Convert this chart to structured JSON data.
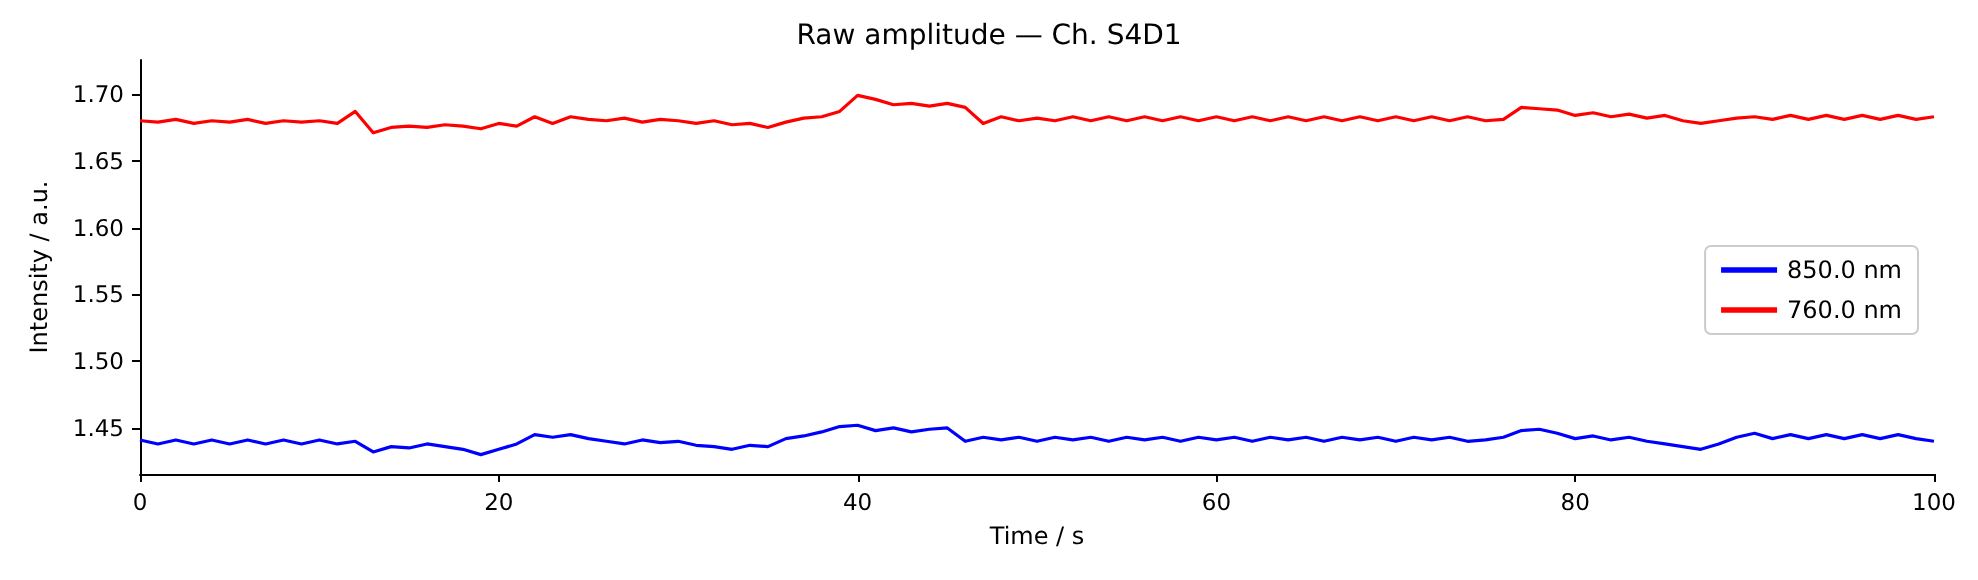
{
  "chart_data": {
    "type": "line",
    "title": "Raw amplitude — Ch. S4D1",
    "xlabel": "Time / s",
    "ylabel": "Intensity / a.u.",
    "x": [
      0,
      1,
      2,
      3,
      4,
      5,
      6,
      7,
      8,
      9,
      10,
      11,
      12,
      13,
      14,
      15,
      16,
      17,
      18,
      19,
      20,
      21,
      22,
      23,
      24,
      25,
      26,
      27,
      28,
      29,
      30,
      31,
      32,
      33,
      34,
      35,
      36,
      37,
      38,
      39,
      40,
      41,
      42,
      43,
      44,
      45,
      46,
      47,
      48,
      49,
      50,
      51,
      52,
      53,
      54,
      55,
      56,
      57,
      58,
      59,
      60,
      61,
      62,
      63,
      64,
      65,
      66,
      67,
      68,
      69,
      70,
      71,
      72,
      73,
      74,
      75,
      76,
      77,
      78,
      79,
      80,
      81,
      82,
      83,
      84,
      85,
      86,
      87,
      88,
      89,
      90,
      91,
      92,
      93,
      94,
      95,
      96,
      97,
      98,
      99,
      100
    ],
    "series": [
      {
        "name": "850.0 nm",
        "color": "#0000ff",
        "values": [
          1.441,
          1.438,
          1.441,
          1.438,
          1.441,
          1.438,
          1.441,
          1.438,
          1.441,
          1.438,
          1.441,
          1.438,
          1.44,
          1.432,
          1.436,
          1.435,
          1.438,
          1.436,
          1.434,
          1.43,
          1.434,
          1.438,
          1.445,
          1.443,
          1.445,
          1.442,
          1.44,
          1.438,
          1.441,
          1.439,
          1.44,
          1.437,
          1.436,
          1.434,
          1.437,
          1.436,
          1.442,
          1.444,
          1.447,
          1.451,
          1.452,
          1.448,
          1.45,
          1.447,
          1.449,
          1.45,
          1.44,
          1.443,
          1.441,
          1.443,
          1.44,
          1.443,
          1.441,
          1.443,
          1.44,
          1.443,
          1.441,
          1.443,
          1.44,
          1.443,
          1.441,
          1.443,
          1.44,
          1.443,
          1.441,
          1.443,
          1.44,
          1.443,
          1.441,
          1.443,
          1.44,
          1.443,
          1.441,
          1.443,
          1.44,
          1.441,
          1.443,
          1.448,
          1.449,
          1.446,
          1.442,
          1.444,
          1.441,
          1.443,
          1.44,
          1.438,
          1.436,
          1.434,
          1.438,
          1.443,
          1.446,
          1.442,
          1.445,
          1.442,
          1.445,
          1.442,
          1.445,
          1.442,
          1.445,
          1.442,
          1.44
        ]
      },
      {
        "name": "760.0 nm",
        "color": "#ff0000",
        "values": [
          1.68,
          1.679,
          1.681,
          1.678,
          1.68,
          1.679,
          1.681,
          1.678,
          1.68,
          1.679,
          1.68,
          1.678,
          1.687,
          1.671,
          1.675,
          1.676,
          1.675,
          1.677,
          1.676,
          1.674,
          1.678,
          1.676,
          1.683,
          1.678,
          1.683,
          1.681,
          1.68,
          1.682,
          1.679,
          1.681,
          1.68,
          1.678,
          1.68,
          1.677,
          1.678,
          1.675,
          1.679,
          1.682,
          1.683,
          1.687,
          1.699,
          1.696,
          1.692,
          1.693,
          1.691,
          1.693,
          1.69,
          1.678,
          1.683,
          1.68,
          1.682,
          1.68,
          1.683,
          1.68,
          1.683,
          1.68,
          1.683,
          1.68,
          1.683,
          1.68,
          1.683,
          1.68,
          1.683,
          1.68,
          1.683,
          1.68,
          1.683,
          1.68,
          1.683,
          1.68,
          1.683,
          1.68,
          1.683,
          1.68,
          1.683,
          1.68,
          1.681,
          1.69,
          1.689,
          1.688,
          1.684,
          1.686,
          1.683,
          1.685,
          1.682,
          1.684,
          1.68,
          1.678,
          1.68,
          1.682,
          1.683,
          1.681,
          1.684,
          1.681,
          1.684,
          1.681,
          1.684,
          1.681,
          1.684,
          1.681,
          1.683
        ]
      }
    ],
    "xlim": [
      0,
      100
    ],
    "xticks": [
      0,
      20,
      40,
      60,
      80,
      100
    ],
    "ylim": [
      1.4155,
      1.7255
    ],
    "yticks": [
      1.45,
      {
        "value": 1.5,
        "label": "1.50"
      },
      1.55,
      {
        "value": 1.6,
        "label": "1.60"
      },
      1.65,
      {
        "value": 1.7,
        "label": "1.70"
      }
    ],
    "legend": "center right",
    "grid": false,
    "marker": "none",
    "line_style": "solid"
  }
}
